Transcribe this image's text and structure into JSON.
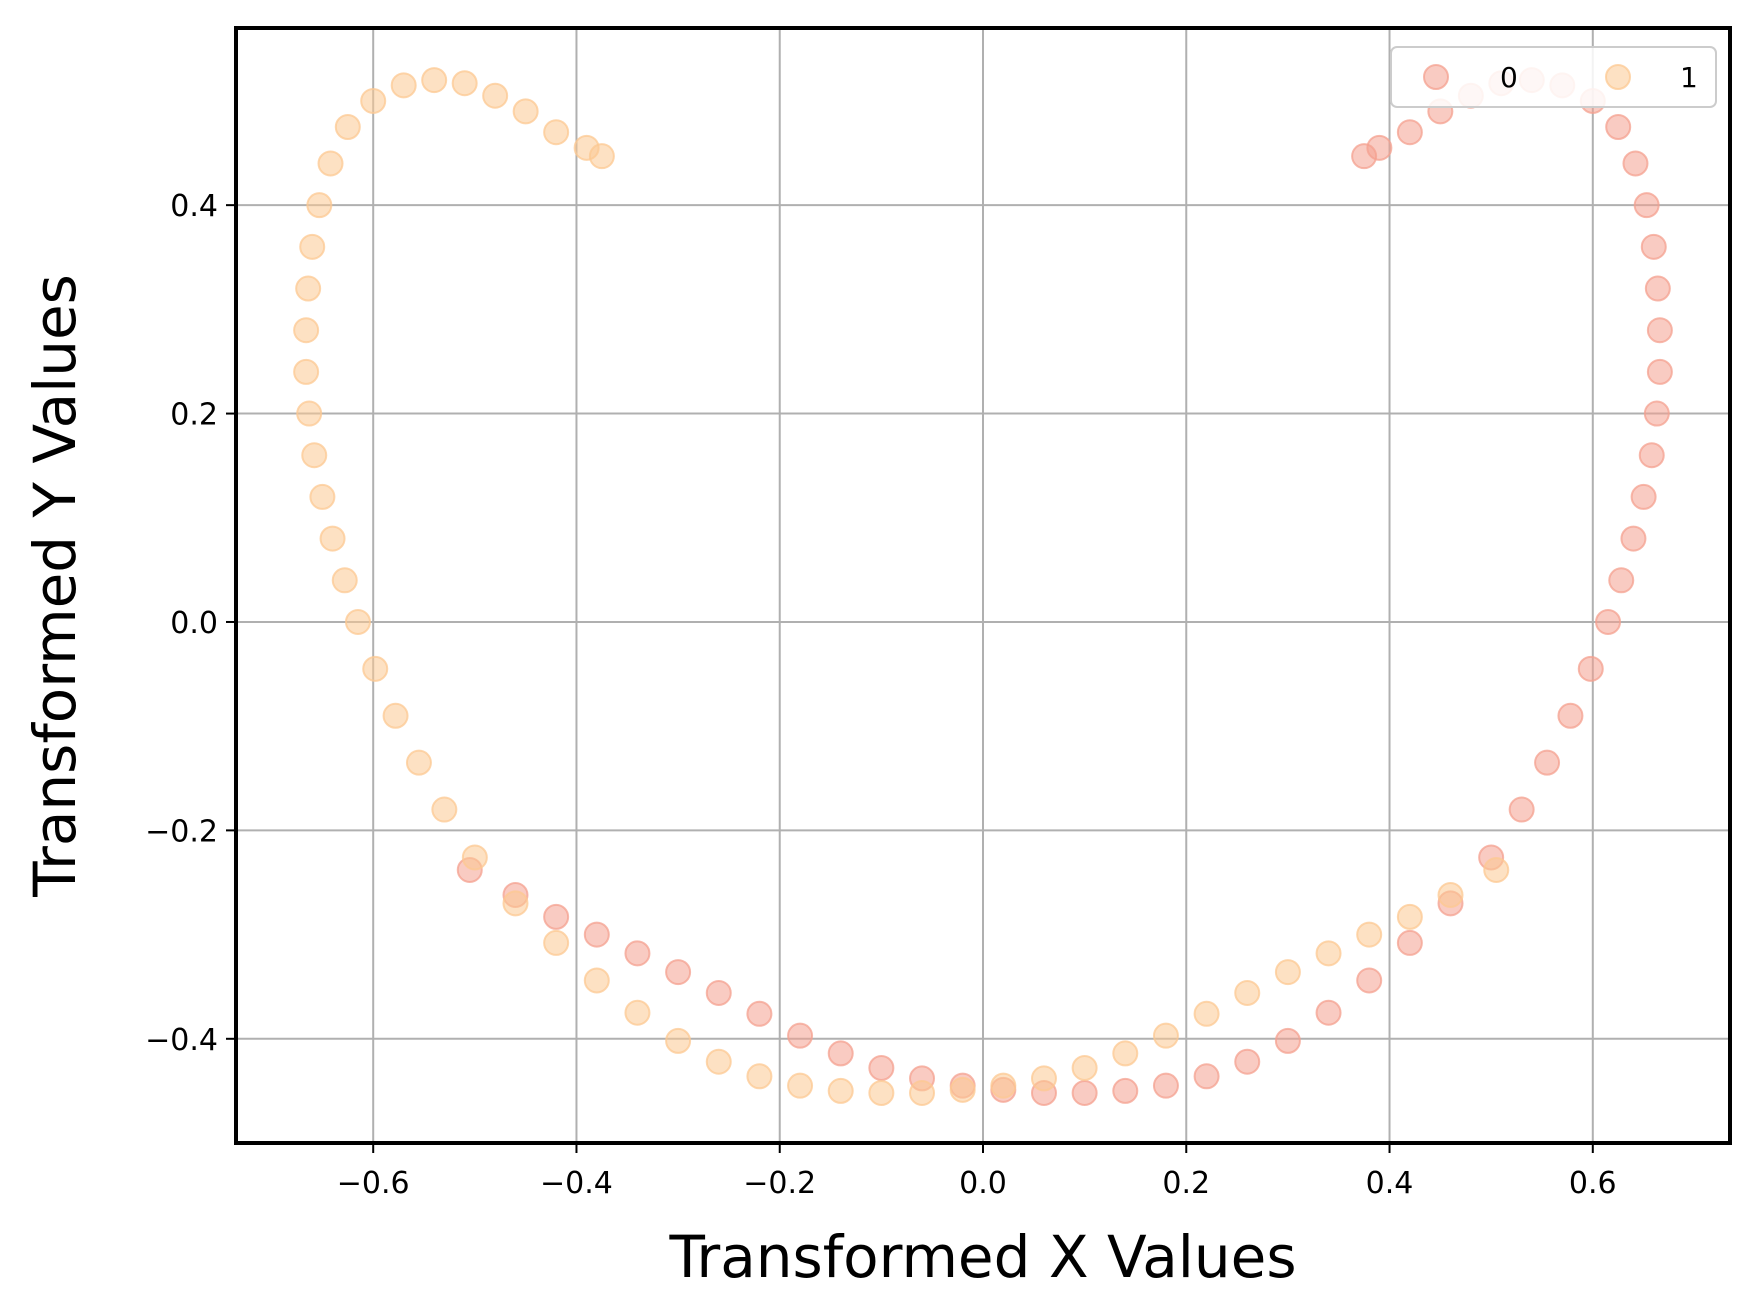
{
  "chart_data": {
    "type": "scatter",
    "title": "",
    "xlabel": "Transformed X Values",
    "ylabel": "Transformed Y Values",
    "xlim": [
      -0.735,
      0.735
    ],
    "ylim": [
      -0.5,
      0.57
    ],
    "xticks": [
      -0.6,
      -0.4,
      -0.2,
      0.0,
      0.2,
      0.4,
      0.6
    ],
    "yticks": [
      -0.4,
      -0.2,
      0.0,
      0.2,
      0.4
    ],
    "xtick_labels": [
      "−0.6",
      "−0.4",
      "−0.2",
      "0.0",
      "0.2",
      "0.4",
      "0.6"
    ],
    "ytick_labels": [
      "−0.4",
      "−0.2",
      "0.0",
      "0.2",
      "0.4"
    ],
    "grid": true,
    "legend_position": "top-right",
    "series": [
      {
        "name": "0",
        "color": "#f4a08f",
        "points": [
          [
            -0.505,
            -0.238
          ],
          [
            -0.46,
            -0.262
          ],
          [
            -0.42,
            -0.283
          ],
          [
            -0.38,
            -0.3
          ],
          [
            -0.34,
            -0.318
          ],
          [
            -0.3,
            -0.336
          ],
          [
            -0.26,
            -0.356
          ],
          [
            -0.22,
            -0.376
          ],
          [
            -0.18,
            -0.397
          ],
          [
            -0.14,
            -0.414
          ],
          [
            -0.1,
            -0.428
          ],
          [
            -0.06,
            -0.438
          ],
          [
            -0.02,
            -0.445
          ],
          [
            0.02,
            -0.449
          ],
          [
            0.06,
            -0.452
          ],
          [
            0.1,
            -0.452
          ],
          [
            0.14,
            -0.45
          ],
          [
            0.18,
            -0.445
          ],
          [
            0.22,
            -0.436
          ],
          [
            0.26,
            -0.422
          ],
          [
            0.3,
            -0.402
          ],
          [
            0.34,
            -0.375
          ],
          [
            0.38,
            -0.344
          ],
          [
            0.42,
            -0.308
          ],
          [
            0.46,
            -0.27
          ],
          [
            0.5,
            -0.226
          ],
          [
            0.53,
            -0.18
          ],
          [
            0.555,
            -0.135
          ],
          [
            0.578,
            -0.09
          ],
          [
            0.598,
            -0.045
          ],
          [
            0.615,
            0.0
          ],
          [
            0.628,
            0.04
          ],
          [
            0.64,
            0.08
          ],
          [
            0.65,
            0.12
          ],
          [
            0.658,
            0.16
          ],
          [
            0.663,
            0.2
          ],
          [
            0.666,
            0.24
          ],
          [
            0.666,
            0.28
          ],
          [
            0.664,
            0.32
          ],
          [
            0.66,
            0.36
          ],
          [
            0.653,
            0.4
          ],
          [
            0.642,
            0.44
          ],
          [
            0.625,
            0.475
          ],
          [
            0.6,
            0.5
          ],
          [
            0.57,
            0.515
          ],
          [
            0.54,
            0.52
          ],
          [
            0.51,
            0.517
          ],
          [
            0.48,
            0.505
          ],
          [
            0.45,
            0.49
          ],
          [
            0.42,
            0.47
          ],
          [
            0.39,
            0.455
          ],
          [
            0.375,
            0.447
          ]
        ]
      },
      {
        "name": "1",
        "color": "#fcc891",
        "points": [
          [
            -0.375,
            0.447
          ],
          [
            -0.39,
            0.455
          ],
          [
            -0.42,
            0.47
          ],
          [
            -0.45,
            0.49
          ],
          [
            -0.48,
            0.505
          ],
          [
            -0.51,
            0.517
          ],
          [
            -0.54,
            0.52
          ],
          [
            -0.57,
            0.515
          ],
          [
            -0.6,
            0.5
          ],
          [
            -0.625,
            0.475
          ],
          [
            -0.642,
            0.44
          ],
          [
            -0.653,
            0.4
          ],
          [
            -0.66,
            0.36
          ],
          [
            -0.664,
            0.32
          ],
          [
            -0.666,
            0.28
          ],
          [
            -0.666,
            0.24
          ],
          [
            -0.663,
            0.2
          ],
          [
            -0.658,
            0.16
          ],
          [
            -0.65,
            0.12
          ],
          [
            -0.64,
            0.08
          ],
          [
            -0.628,
            0.04
          ],
          [
            -0.615,
            0.0
          ],
          [
            -0.598,
            -0.045
          ],
          [
            -0.578,
            -0.09
          ],
          [
            -0.555,
            -0.135
          ],
          [
            -0.53,
            -0.18
          ],
          [
            -0.5,
            -0.226
          ],
          [
            -0.46,
            -0.27
          ],
          [
            -0.42,
            -0.308
          ],
          [
            -0.38,
            -0.344
          ],
          [
            -0.34,
            -0.375
          ],
          [
            -0.3,
            -0.402
          ],
          [
            -0.26,
            -0.422
          ],
          [
            -0.22,
            -0.436
          ],
          [
            -0.18,
            -0.445
          ],
          [
            -0.14,
            -0.45
          ],
          [
            -0.1,
            -0.452
          ],
          [
            -0.06,
            -0.452
          ],
          [
            -0.02,
            -0.449
          ],
          [
            0.02,
            -0.445
          ],
          [
            0.06,
            -0.438
          ],
          [
            0.1,
            -0.428
          ],
          [
            0.14,
            -0.414
          ],
          [
            0.18,
            -0.397
          ],
          [
            0.22,
            -0.376
          ],
          [
            0.26,
            -0.356
          ],
          [
            0.3,
            -0.336
          ],
          [
            0.34,
            -0.318
          ],
          [
            0.38,
            -0.3
          ],
          [
            0.42,
            -0.283
          ],
          [
            0.46,
            -0.262
          ],
          [
            0.505,
            -0.238
          ]
        ]
      }
    ]
  }
}
